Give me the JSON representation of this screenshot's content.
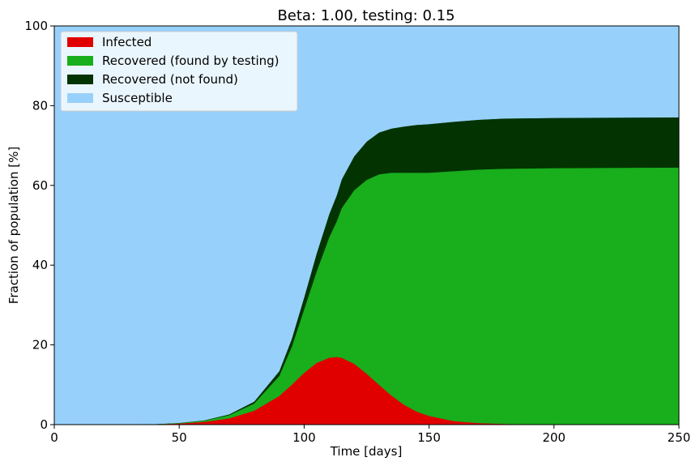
{
  "chart_data": {
    "type": "area",
    "stacked": true,
    "title": "Beta: 1.00, testing: 0.15",
    "xlabel": "Time [days]",
    "ylabel": "Fraction of population [%]",
    "xlim": [
      0,
      250
    ],
    "ylim": [
      0,
      100
    ],
    "xticks": [
      0,
      50,
      100,
      150,
      200,
      250
    ],
    "yticks": [
      0,
      20,
      40,
      60,
      80,
      100
    ],
    "grid": false,
    "legend_position": "top-left",
    "x": [
      0,
      20,
      40,
      50,
      60,
      70,
      80,
      90,
      95,
      100,
      105,
      110,
      113,
      115,
      120,
      125,
      130,
      135,
      140,
      145,
      150,
      160,
      170,
      180,
      200,
      220,
      250
    ],
    "series": [
      {
        "name": "Infected",
        "color": "#e00000",
        "values": [
          0,
          0,
          0.1,
          0.3,
          0.7,
          1.6,
          3.5,
          7.2,
          10.0,
          13.0,
          15.5,
          16.8,
          17.0,
          16.8,
          15.3,
          12.8,
          10.0,
          7.3,
          5.0,
          3.3,
          2.2,
          0.9,
          0.4,
          0.2,
          0.05,
          0.02,
          0
        ]
      },
      {
        "name": "Recovered (found by testing)",
        "color": "#18ae1c",
        "values": [
          0,
          0,
          0.05,
          0.1,
          0.3,
          0.8,
          1.8,
          5.0,
          9.5,
          16.0,
          23.0,
          30.2,
          34.0,
          37.5,
          43.5,
          48.6,
          52.8,
          55.9,
          58.2,
          59.9,
          61.0,
          62.7,
          63.6,
          64.0,
          64.3,
          64.4,
          64.5
        ]
      },
      {
        "name": "Recovered (not found)",
        "color": "#033300",
        "values": [
          0,
          0,
          0,
          0.05,
          0.1,
          0.2,
          0.5,
          1.2,
          2.0,
          3.0,
          4.5,
          5.8,
          6.5,
          7.2,
          8.5,
          9.6,
          10.5,
          11.1,
          11.6,
          12.0,
          12.2,
          12.4,
          12.5,
          12.6,
          12.6,
          12.6,
          12.6
        ]
      },
      {
        "name": "Susceptible",
        "color": "#97d1fb",
        "values": [
          100,
          100,
          99.85,
          99.55,
          98.9,
          97.4,
          94.2,
          86.6,
          78.5,
          68.0,
          57.0,
          47.2,
          42.5,
          38.5,
          32.7,
          29.0,
          26.7,
          25.7,
          25.2,
          24.8,
          24.6,
          24.0,
          23.5,
          23.2,
          23.05,
          22.98,
          22.9
        ]
      }
    ]
  }
}
